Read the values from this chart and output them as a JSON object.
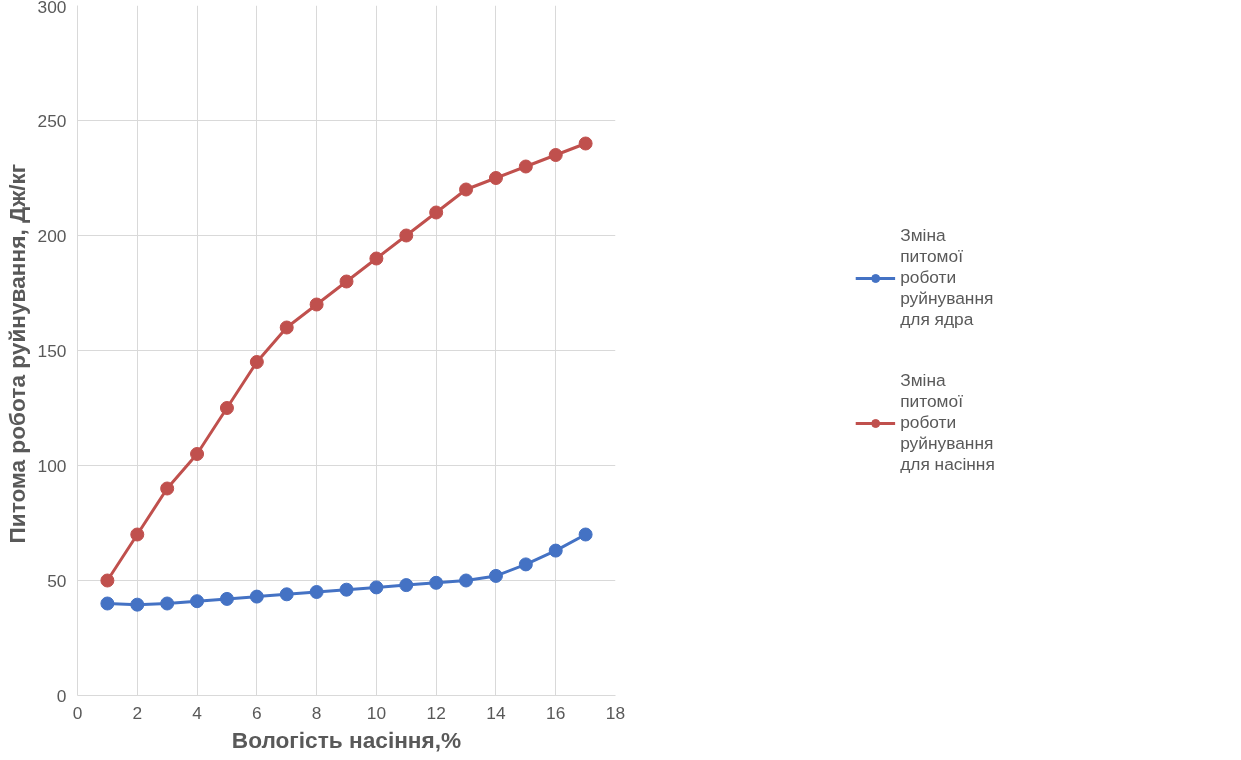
{
  "chart_data": {
    "type": "line",
    "xlabel": "Вологість насіння,%",
    "ylabel": "Питома робота  руйнування, Дж/кг",
    "x": [
      1,
      2,
      3,
      4,
      5,
      6,
      7,
      8,
      9,
      10,
      11,
      12,
      13,
      14,
      15,
      16,
      17
    ],
    "series": [
      {
        "name": "Зміна питомої роботи руйнування для ядра",
        "color": "#4472c4",
        "values": [
          40,
          39.5,
          40,
          41,
          42,
          43,
          44,
          45,
          46,
          47,
          48,
          49,
          50,
          52,
          57,
          63,
          70
        ]
      },
      {
        "name": "Зміна питомої роботи руйнування для насіння",
        "color": "#c0504d",
        "values": [
          50,
          70,
          90,
          105,
          125,
          145,
          160,
          170,
          180,
          190,
          200,
          210,
          220,
          225,
          230,
          235,
          240
        ]
      }
    ],
    "xlim": [
      0,
      18
    ],
    "xticks": [
      0,
      2,
      4,
      6,
      8,
      10,
      12,
      14,
      16,
      18
    ],
    "ylim": [
      0,
      300
    ],
    "yticks": [
      0,
      50,
      100,
      150,
      200,
      250,
      300
    ],
    "grid": true,
    "legend": "right",
    "marker": "circle",
    "line_style": "solid"
  }
}
